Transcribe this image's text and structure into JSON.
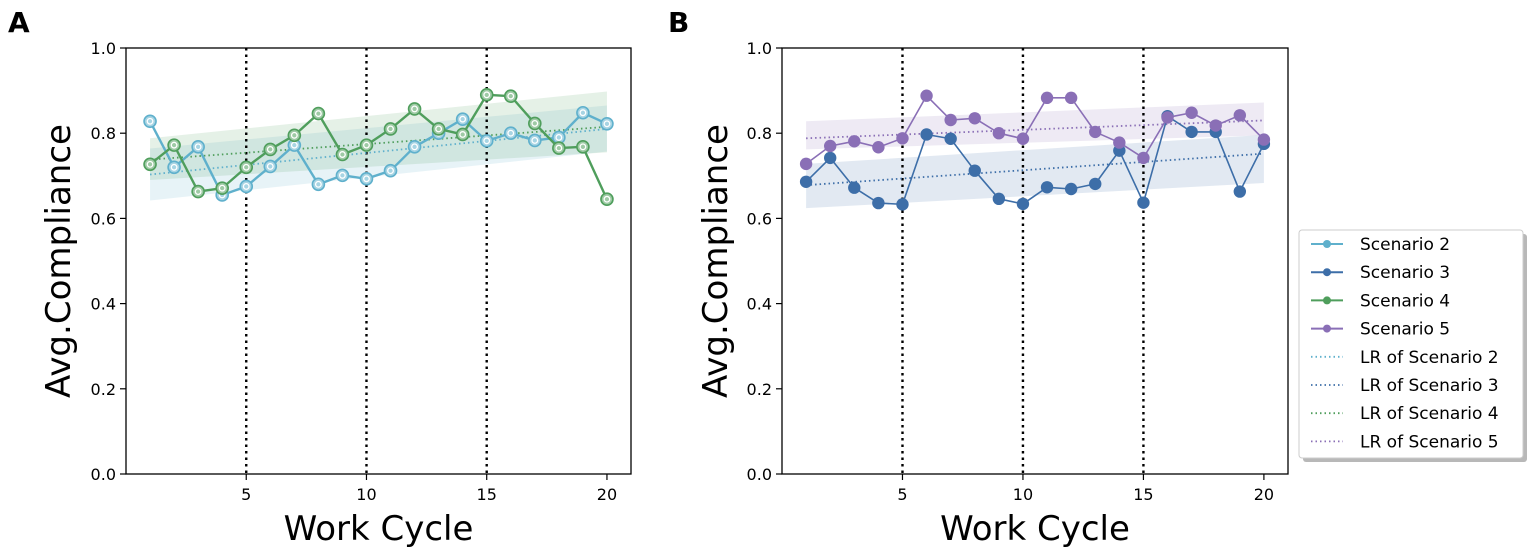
{
  "chart_data": [
    {
      "panel": "A",
      "type": "line",
      "xlabel": "Work Cycle",
      "ylabel": "Avg.Compliance",
      "xlim": [
        0,
        21
      ],
      "ylim": [
        0.0,
        1.0
      ],
      "xticks": [
        5,
        10,
        15,
        20
      ],
      "yticks": [
        0.0,
        0.2,
        0.4,
        0.6,
        0.8,
        1.0
      ],
      "ytick_labels": [
        "0.0",
        "0.2",
        "0.4",
        "0.6",
        "0.8",
        "1.0"
      ],
      "vlines": [
        5,
        10,
        15
      ],
      "series": [
        {
          "name": "Scenario 2",
          "color": "#5fb0cc",
          "marker": "ring",
          "x": [
            1,
            2,
            3,
            4,
            5,
            6,
            7,
            8,
            9,
            10,
            11,
            12,
            13,
            14,
            15,
            16,
            17,
            18,
            19,
            20
          ],
          "values": [
            0.828,
            0.72,
            0.768,
            0.655,
            0.675,
            0.722,
            0.772,
            0.68,
            0.701,
            0.693,
            0.712,
            0.768,
            0.8,
            0.833,
            0.782,
            0.8,
            0.783,
            0.79,
            0.848,
            0.822
          ],
          "lr": {
            "name": "LR of Scenario 2",
            "start": 0.703,
            "end": 0.81,
            "band_start": [
              0.642,
              0.764
            ],
            "band_end": [
              0.757,
              0.865
            ]
          }
        },
        {
          "name": "Scenario 4",
          "color": "#4f9e5c",
          "marker": "ring",
          "x": [
            1,
            2,
            3,
            4,
            5,
            6,
            7,
            8,
            9,
            10,
            11,
            12,
            13,
            14,
            15,
            16,
            17,
            18,
            19,
            20
          ],
          "values": [
            0.727,
            0.772,
            0.663,
            0.671,
            0.72,
            0.762,
            0.795,
            0.846,
            0.75,
            0.772,
            0.81,
            0.857,
            0.81,
            0.797,
            0.89,
            0.887,
            0.823,
            0.765,
            0.768,
            0.645
          ],
          "lr": {
            "name": "LR of Scenario 4",
            "start": 0.738,
            "end": 0.815,
            "band_start": [
              0.69,
              0.788
            ],
            "band_end": [
              0.755,
              0.898
            ]
          }
        }
      ]
    },
    {
      "panel": "B",
      "type": "line",
      "xlabel": "Work Cycle",
      "ylabel": "Avg.Compliance",
      "xlim": [
        0,
        21
      ],
      "ylim": [
        0.0,
        1.0
      ],
      "xticks": [
        5,
        10,
        15,
        20
      ],
      "yticks": [
        0.0,
        0.2,
        0.4,
        0.6,
        0.8,
        1.0
      ],
      "ytick_labels": [
        "0.0",
        "0.2",
        "0.4",
        "0.6",
        "0.8",
        "1.0"
      ],
      "vlines": [
        5,
        10,
        15
      ],
      "series": [
        {
          "name": "Scenario 3",
          "color": "#3d6ea8",
          "marker": "dot",
          "x": [
            1,
            2,
            3,
            4,
            5,
            6,
            7,
            8,
            9,
            10,
            11,
            12,
            13,
            14,
            15,
            16,
            17,
            18,
            19,
            20
          ],
          "values": [
            0.686,
            0.742,
            0.672,
            0.636,
            0.633,
            0.797,
            0.787,
            0.712,
            0.646,
            0.634,
            0.673,
            0.669,
            0.681,
            0.759,
            0.637,
            0.84,
            0.803,
            0.803,
            0.663,
            0.775
          ],
          "lr": {
            "name": "LR of Scenario 3",
            "start": 0.678,
            "end": 0.752,
            "band_start": [
              0.624,
              0.728
            ],
            "band_end": [
              0.683,
              0.796
            ]
          }
        },
        {
          "name": "Scenario 5",
          "color": "#8a6fb6",
          "marker": "dot",
          "x": [
            1,
            2,
            3,
            4,
            5,
            6,
            7,
            8,
            9,
            10,
            11,
            12,
            13,
            14,
            15,
            16,
            17,
            18,
            19,
            20
          ],
          "values": [
            0.728,
            0.77,
            0.781,
            0.767,
            0.788,
            0.888,
            0.831,
            0.835,
            0.8,
            0.787,
            0.883,
            0.883,
            0.803,
            0.778,
            0.742,
            0.837,
            0.848,
            0.818,
            0.842,
            0.785
          ],
          "lr": {
            "name": "LR of Scenario 5",
            "start": 0.788,
            "end": 0.83,
            "band_start": [
              0.762,
              0.828
            ],
            "band_end": [
              0.795,
              0.872
            ]
          }
        }
      ]
    }
  ],
  "legend": {
    "placement": "right",
    "entries": [
      {
        "label": "Scenario 2",
        "color": "#5fb0cc",
        "style": "solid"
      },
      {
        "label": "Scenario 3",
        "color": "#3d6ea8",
        "style": "solid"
      },
      {
        "label": "Scenario 4",
        "color": "#4f9e5c",
        "style": "solid"
      },
      {
        "label": "Scenario 5",
        "color": "#8a6fb6",
        "style": "solid"
      },
      {
        "label": "LR of Scenario 2",
        "color": "#5fb0cc",
        "style": "dotted"
      },
      {
        "label": "LR of Scenario 3",
        "color": "#3d6ea8",
        "style": "dotted"
      },
      {
        "label": "LR of Scenario 4",
        "color": "#4f9e5c",
        "style": "dotted"
      },
      {
        "label": "LR of Scenario 5",
        "color": "#8a6fb6",
        "style": "dotted"
      }
    ]
  }
}
